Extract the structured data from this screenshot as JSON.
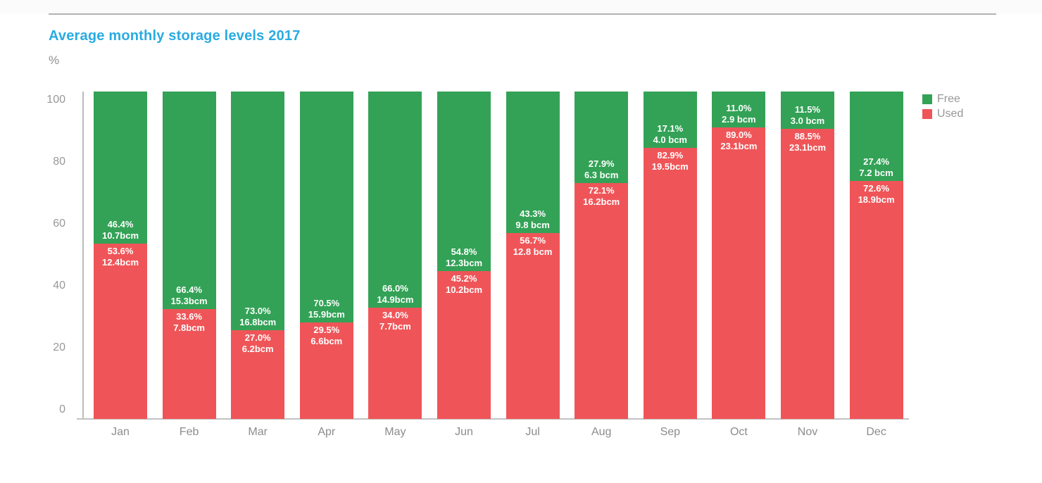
{
  "page": {
    "background": "#ffffff"
  },
  "chart_data": {
    "type": "bar",
    "stacked": true,
    "percent_stacked": true,
    "title": "Average monthly storage levels 2017",
    "title_color": "#2aabe2",
    "ylabel": "%",
    "xlabel": "",
    "categories": [
      "Jan",
      "Feb",
      "Mar",
      "Apr",
      "May",
      "Jun",
      "Jul",
      "Aug",
      "Sep",
      "Oct",
      "Nov",
      "Dec"
    ],
    "yticks": [
      0,
      20,
      40,
      60,
      80,
      100
    ],
    "ylim": [
      0,
      100
    ],
    "grid": false,
    "legend_position": "top-right",
    "legend": [
      "Free",
      "Used"
    ],
    "series": [
      {
        "name": "Free",
        "color": "#33a256",
        "values": [
          46.4,
          66.4,
          73.0,
          70.5,
          66.0,
          54.8,
          43.3,
          27.9,
          17.1,
          11.0,
          11.5,
          27.4
        ],
        "labels_pct": [
          "46.4%",
          "66.4%",
          "73.0%",
          "70.5%",
          "66.0%",
          "54.8%",
          "43.3%",
          "27.9%",
          "17.1%",
          "11.0%",
          "11.5%",
          "27.4%"
        ],
        "labels_vol": [
          "10.7bcm",
          "15.3bcm",
          "16.8bcm",
          "15.9bcm",
          "14.9bcm",
          "12.3bcm",
          "9.8 bcm",
          "6.3 bcm",
          "4.0 bcm",
          "2.9 bcm",
          "3.0 bcm",
          "7.2 bcm"
        ]
      },
      {
        "name": "Used",
        "color": "#ef5558",
        "values": [
          53.6,
          33.6,
          27.0,
          29.5,
          34.0,
          45.2,
          56.7,
          72.1,
          82.9,
          89.0,
          88.5,
          72.6
        ],
        "labels_pct": [
          "53.6%",
          "33.6%",
          "27.0%",
          "29.5%",
          "34.0%",
          "45.2%",
          "56.7%",
          "72.1%",
          "82.9%",
          "89.0%",
          "88.5%",
          "72.6%"
        ],
        "labels_vol": [
          "12.4bcm",
          "7.8bcm",
          "6.2bcm",
          "6.6bcm",
          "7.7bcm",
          "10.2bcm",
          "12.8 bcm",
          "16.2bcm",
          "19.5bcm",
          "23.1bcm",
          "23.1bcm",
          "18.9bcm"
        ]
      }
    ]
  }
}
